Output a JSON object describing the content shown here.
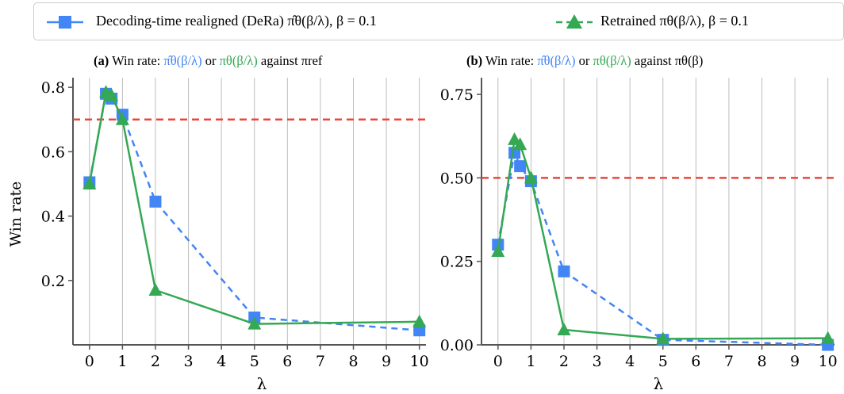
{
  "legend": {
    "items": [
      {
        "label": "Decoding-time realigned (DeRa)  π̂θ(β/λ),  β = 0.1",
        "color": "#4285f4",
        "marker": "square",
        "linestyle": "dashed-solid"
      },
      {
        "label": "Retrained  πθ(β/λ),  β = 0.1",
        "color": "#34a853",
        "marker": "triangle",
        "linestyle": "dashed"
      }
    ]
  },
  "colors": {
    "dera": "#4285f4",
    "retrained": "#34a853",
    "reference_line": "#e8473c",
    "grid": "#bdbdbd"
  },
  "chart_data": [
    {
      "type": "line",
      "title_prefix": "(a)",
      "title_text": "Win rate:",
      "title_blue": "π̂θ(β/λ)",
      "title_mid": "or",
      "title_green": "πθ(β/λ)",
      "title_suffix": "against πref",
      "xlabel": "λ",
      "ylabel": "Win rate",
      "xlim": [
        -0.5,
        10.2
      ],
      "ylim": [
        0.0,
        0.83
      ],
      "xticks": [
        0,
        1,
        2,
        3,
        4,
        5,
        6,
        7,
        8,
        9,
        10
      ],
      "yticks": [
        0.2,
        0.4,
        0.6,
        0.8
      ],
      "ytick_labels": [
        "0.2",
        "0.4",
        "0.6",
        "0.8"
      ],
      "grid": "vertical",
      "hline": 0.7,
      "series": [
        {
          "name": "Decoding-time realigned (DeRa)",
          "x": [
            0,
            0.5,
            0.67,
            1,
            2,
            5,
            10
          ],
          "y": [
            0.505,
            0.78,
            0.765,
            0.715,
            0.445,
            0.085,
            0.045
          ]
        },
        {
          "name": "Retrained",
          "x": [
            0,
            0.5,
            0.67,
            1,
            2,
            5,
            10
          ],
          "y": [
            0.5,
            0.785,
            0.775,
            0.7,
            0.17,
            0.065,
            0.072
          ]
        }
      ]
    },
    {
      "type": "line",
      "title_prefix": "(b)",
      "title_text": "Win rate:",
      "title_blue": "π̂θ(β/λ)",
      "title_mid": "or",
      "title_green": "πθ(β/λ)",
      "title_suffix": "against πθ(β)",
      "xlabel": "λ",
      "ylabel": "",
      "xlim": [
        -0.5,
        10.2
      ],
      "ylim": [
        0.0,
        0.8
      ],
      "xticks": [
        0,
        1,
        2,
        3,
        4,
        5,
        6,
        7,
        8,
        9,
        10
      ],
      "yticks": [
        0.0,
        0.25,
        0.5,
        0.75
      ],
      "ytick_labels": [
        "0.00",
        "0.25",
        "0.50",
        "0.75"
      ],
      "grid": "vertical",
      "hline": 0.5,
      "series": [
        {
          "name": "Decoding-time realigned (DeRa)",
          "x": [
            0,
            0.5,
            0.67,
            1,
            2,
            5,
            10
          ],
          "y": [
            0.3,
            0.575,
            0.535,
            0.49,
            0.22,
            0.015,
            0.0
          ]
        },
        {
          "name": "Retrained",
          "x": [
            0,
            0.5,
            0.67,
            1,
            2,
            5,
            10
          ],
          "y": [
            0.28,
            0.615,
            0.6,
            0.5,
            0.045,
            0.018,
            0.02
          ]
        }
      ]
    }
  ]
}
